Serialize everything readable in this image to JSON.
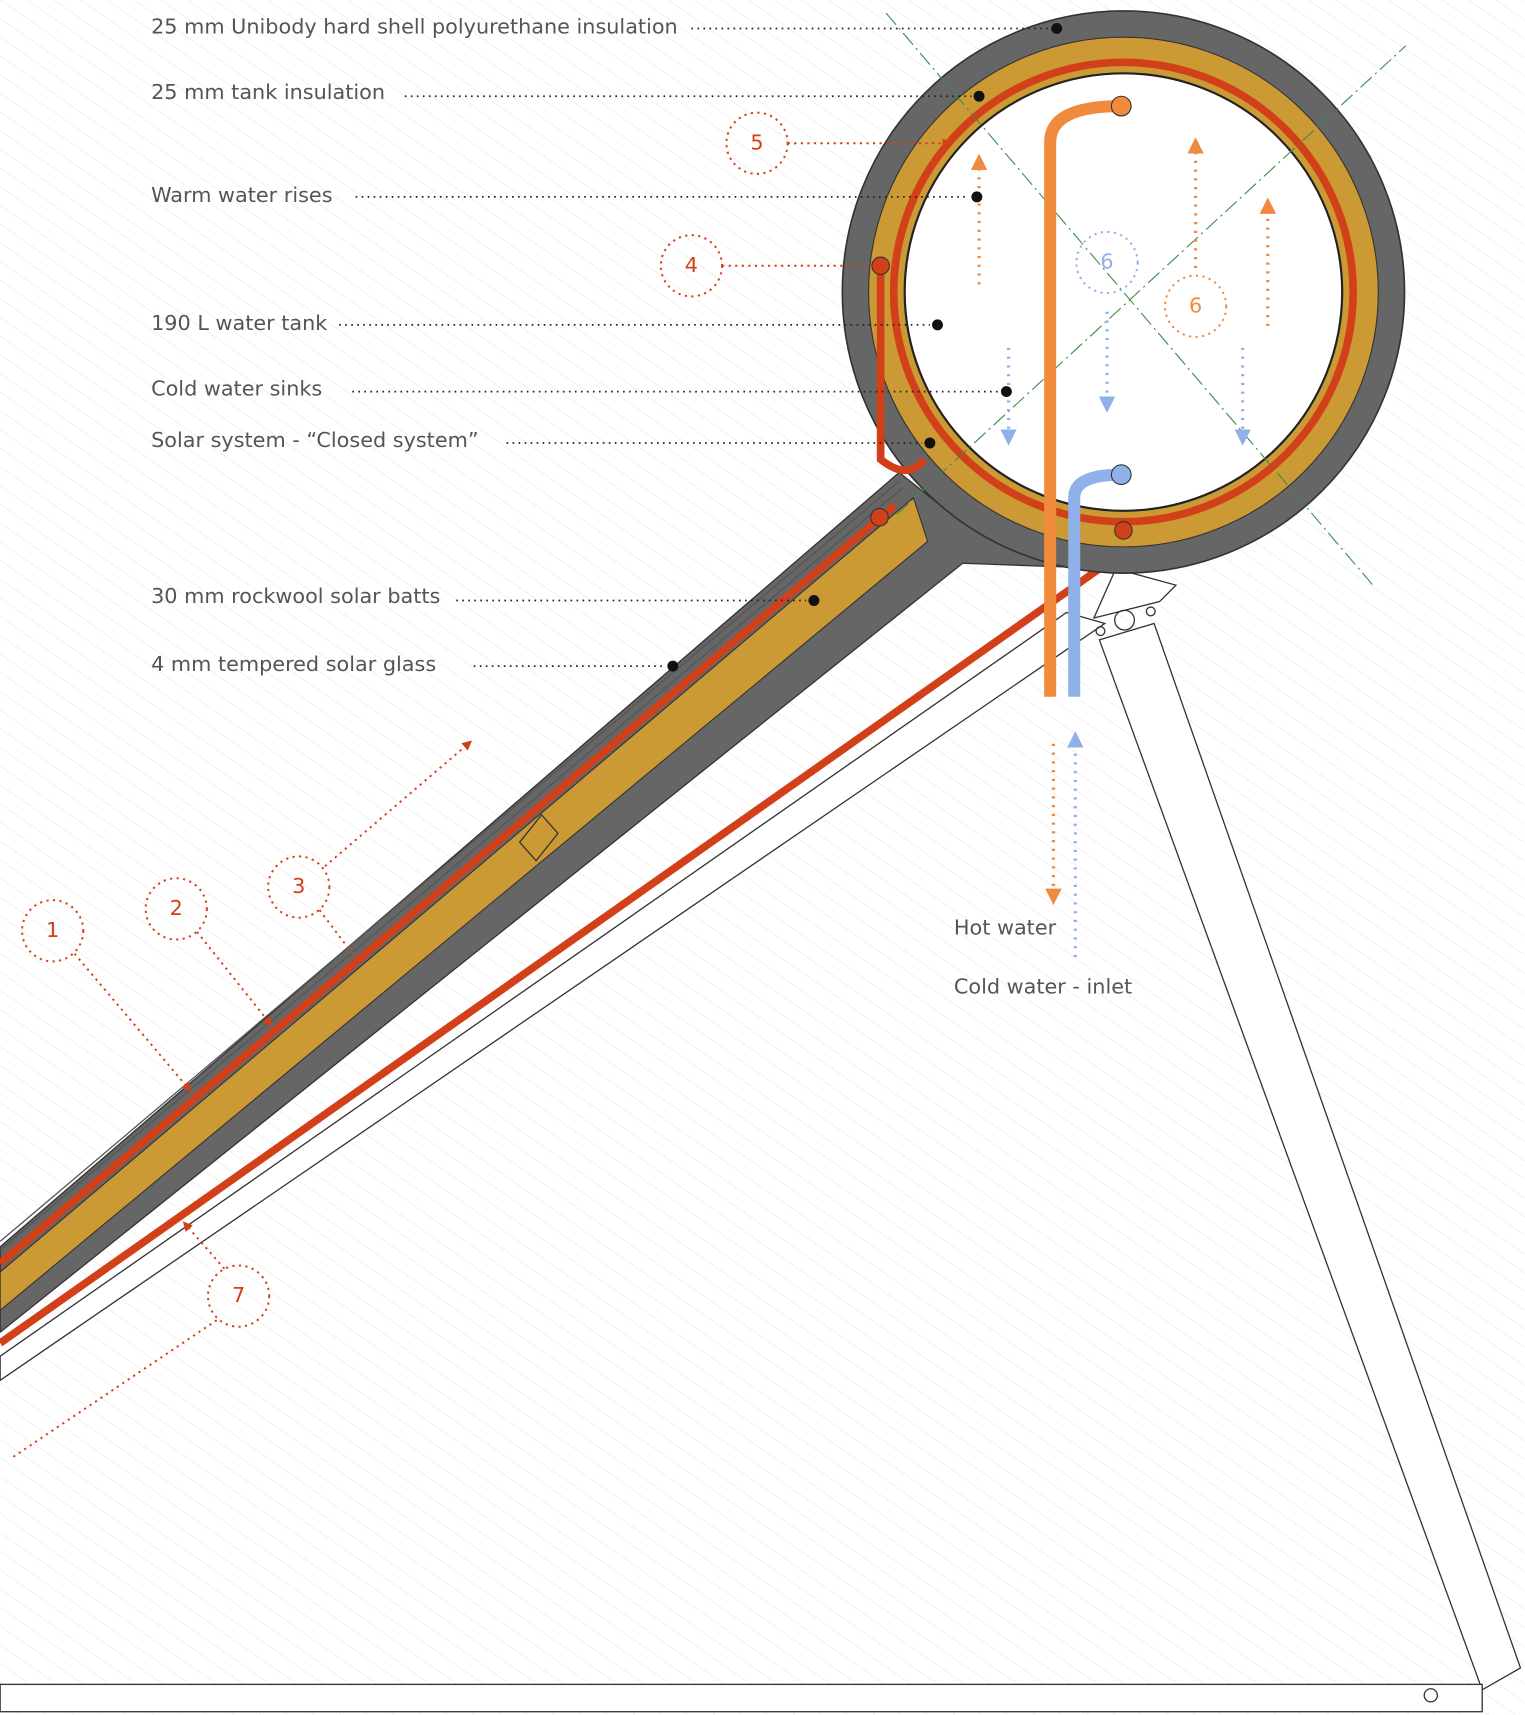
{
  "labels": [
    "25 mm Unibody hard shell polyurethane insulation",
    "25 mm tank insulation",
    "Warm water rises",
    "190 L water tank",
    "Cold water sinks",
    "Solar system - “Closed system”",
    "30 mm rockwool solar batts",
    "4 mm tempered solar glass"
  ],
  "callouts": [
    "1",
    "2",
    "3",
    "4",
    "5",
    "6",
    "6",
    "7"
  ],
  "flow_labels": [
    "Hot water",
    "Cold water - inlet"
  ]
}
